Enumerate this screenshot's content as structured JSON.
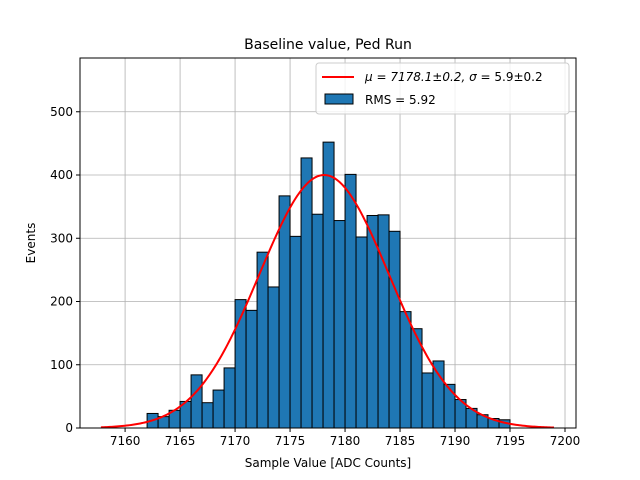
{
  "chart_data": {
    "type": "bar",
    "title": "Baseline value, Ped Run",
    "xlabel": "Sample Value [ADC Counts]",
    "ylabel": "Events",
    "xlim": [
      7155.9,
      7201.0
    ],
    "ylim": [
      0,
      585
    ],
    "grid": true,
    "legend_position": "upper-right",
    "x_ticks": [
      7160,
      7165,
      7170,
      7175,
      7180,
      7185,
      7190,
      7195,
      7200
    ],
    "y_ticks": [
      0,
      100,
      200,
      300,
      400,
      500
    ],
    "colors": {
      "bars": "#1f77b4",
      "bar_edge": "#000000",
      "fit": "#ff0000",
      "grid": "#b0b0b0"
    },
    "histogram": {
      "bin_width": 1,
      "bin_starts": [
        7158,
        7159,
        7160,
        7161,
        7162,
        7163,
        7164,
        7165,
        7166,
        7167,
        7168,
        7169,
        7170,
        7171,
        7172,
        7173,
        7174,
        7175,
        7176,
        7177,
        7178,
        7179,
        7180,
        7181,
        7182,
        7183,
        7184,
        7185,
        7186,
        7187,
        7188,
        7189,
        7190,
        7191,
        7192,
        7193,
        7194,
        7195
      ],
      "counts": [
        0,
        0,
        0,
        0,
        23,
        18,
        28,
        42,
        84,
        40,
        60,
        95,
        203,
        186,
        278,
        223,
        367,
        303,
        427,
        338,
        452,
        328,
        401,
        302,
        336,
        337,
        311,
        184,
        157,
        87,
        106,
        69,
        45,
        31,
        21,
        15,
        13,
        0
      ]
    },
    "fit": {
      "mu": 7178.1,
      "sigma": 5.9,
      "amplitude": 400,
      "x_range": [
        7157.8,
        7199.0
      ]
    },
    "legend": [
      {
        "kind": "line",
        "prefix": "μ = 7178.1±0.2, ",
        "sigma_symbol": "σ",
        "suffix": " = 5.9±0.2"
      },
      {
        "kind": "patch",
        "label": "RMS = 5.92"
      }
    ]
  }
}
